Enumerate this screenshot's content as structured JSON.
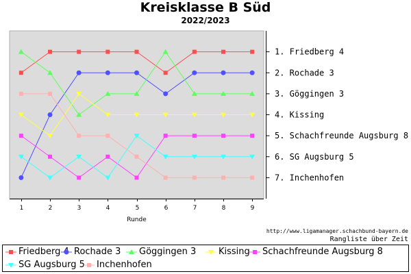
{
  "chart_data": {
    "type": "line",
    "title": "Kreisklasse B Süd",
    "subtitle": "2022/2023",
    "xlabel": "Runde",
    "x": [
      1,
      2,
      3,
      4,
      5,
      6,
      7,
      8,
      9
    ],
    "y_categories": [
      "1. Friedberg 4",
      "2. Rochade 3",
      "3. Göggingen 3",
      "4. Kissing",
      "5. Schachfreunde Augsburg 8",
      "6. SG Augsburg 5",
      "7. Inchenhofen"
    ],
    "ylim": [
      0.0,
      8.0
    ],
    "y_inverted": true,
    "grid": false,
    "background": "#dcdcdc",
    "legend_position": "bottom",
    "series": [
      {
        "name": "Friedberg 4",
        "color": "#ff4d4d",
        "marker": "square",
        "values": [
          2,
          1,
          1,
          1,
          1,
          2,
          1,
          1,
          1
        ]
      },
      {
        "name": "Rochade 3",
        "color": "#5050ff",
        "marker": "circle",
        "values": [
          7,
          4,
          2,
          2,
          2,
          3,
          2,
          2,
          2
        ]
      },
      {
        "name": "Göggingen 3",
        "color": "#5cff5c",
        "marker": "triangle-up",
        "values": [
          1,
          2,
          4,
          3,
          3,
          1,
          3,
          3,
          3
        ]
      },
      {
        "name": "Kissing",
        "color": "#ffff40",
        "marker": "triangle-down",
        "values": [
          4,
          5,
          3,
          4,
          4,
          4,
          4,
          4,
          4
        ]
      },
      {
        "name": "Schachfreunde Augsburg 8",
        "color": "#ff40ff",
        "marker": "square",
        "values": [
          5,
          6,
          7,
          6,
          7,
          5,
          5,
          5,
          5
        ]
      },
      {
        "name": "SG Augsburg 5",
        "color": "#40ffff",
        "marker": "triangle-down",
        "values": [
          6,
          7,
          6,
          7,
          5,
          6,
          6,
          6,
          6
        ]
      },
      {
        "name": "Inchenhofen",
        "color": "#ffb0b0",
        "marker": "square",
        "values": [
          3,
          3,
          5,
          5,
          6,
          7,
          7,
          7,
          7
        ]
      }
    ]
  },
  "footer": {
    "url": "http://www.ligamanager.schachbund-bayern.de",
    "caption": "Rangliste über Zeit"
  }
}
